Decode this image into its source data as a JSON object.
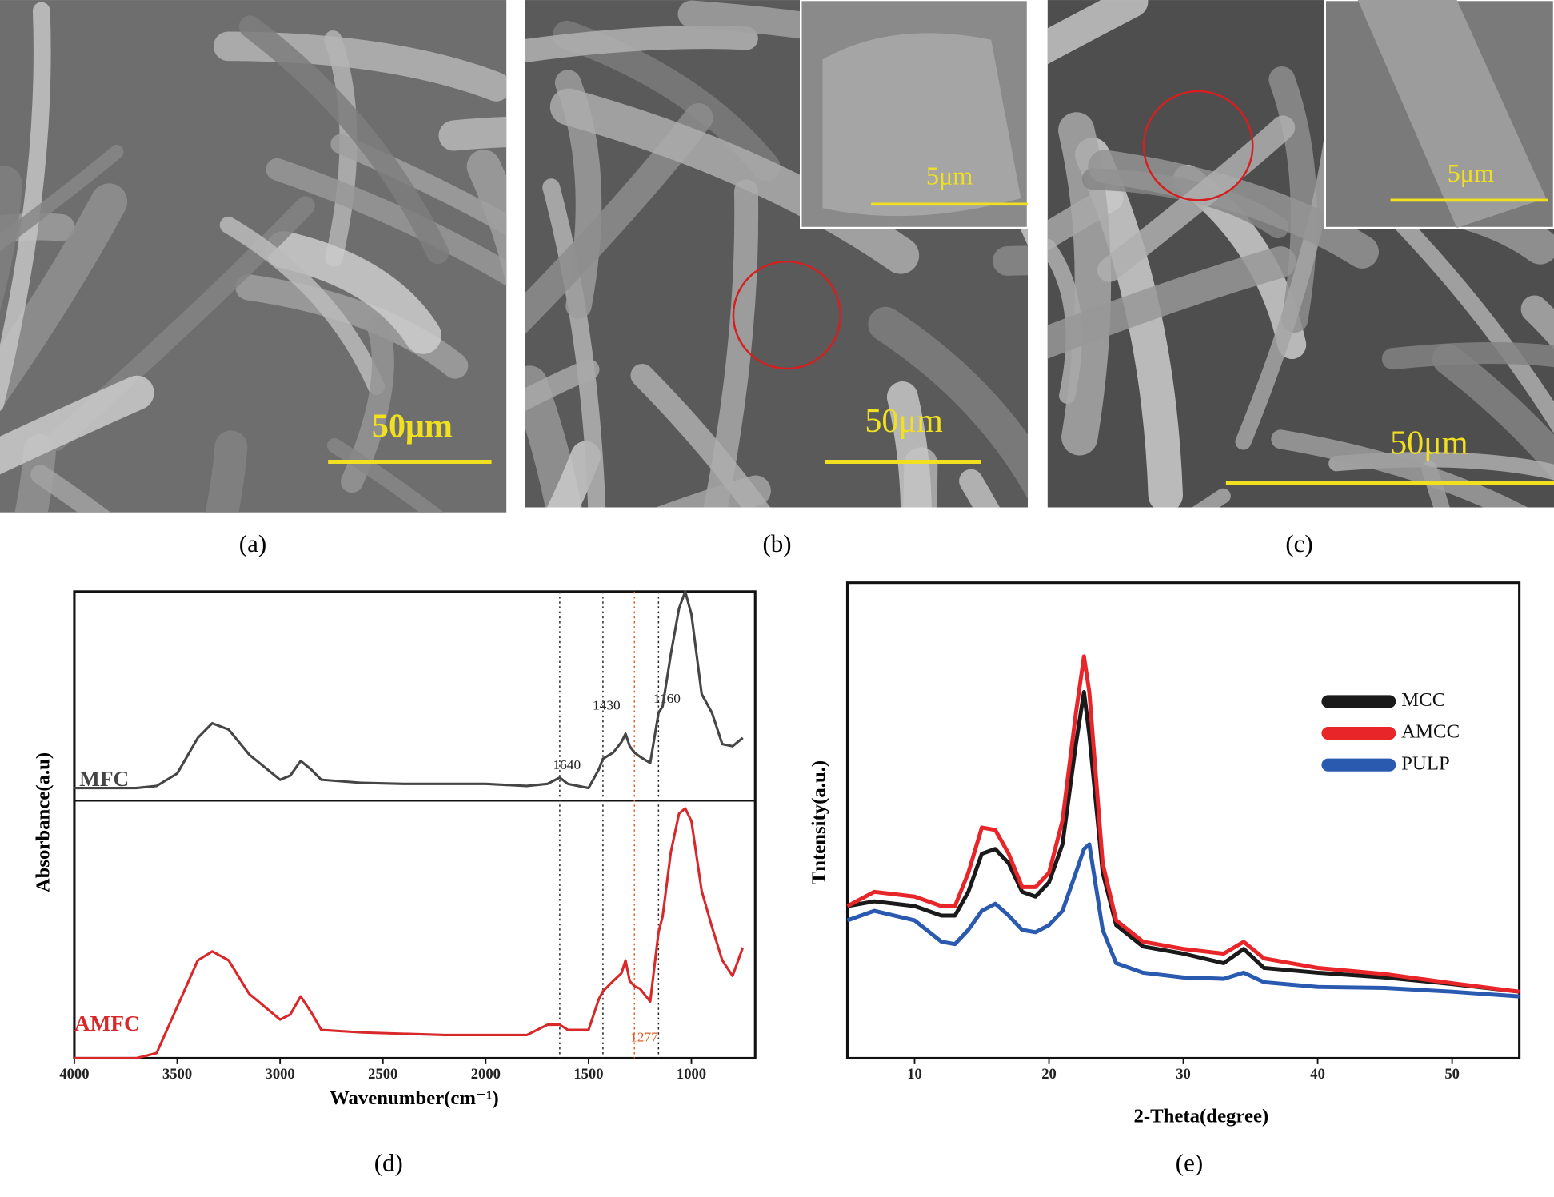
{
  "panels": [
    {
      "label": "(a)",
      "scale_bar": "50μm"
    },
    {
      "label": "(b)",
      "scale_bar": "50μm",
      "inset_scale_bar": "5μm"
    },
    {
      "label": "(c)",
      "scale_bar": "50μm",
      "inset_scale_bar": "5μm"
    }
  ],
  "chart_data": [
    {
      "type": "line",
      "label": "(d)",
      "x_label": "Wavenumber(cm⁻¹)",
      "y_label": "Absorbance(a.u)",
      "xlim": [
        4000,
        690
      ],
      "xticks": [
        4000,
        3500,
        3000,
        2500,
        2000,
        1500,
        1000
      ],
      "ylim": [
        0,
        1
      ],
      "legend": false,
      "vlines": [
        1640,
        1430,
        1277,
        1160
      ],
      "vline_colors": [
        "#222222",
        "#222222",
        "#e0602a",
        "#222222"
      ],
      "x": [
        4000,
        3800,
        3700,
        3600,
        3500,
        3400,
        3330,
        3250,
        3150,
        3000,
        2950,
        2900,
        2850,
        2800,
        2600,
        2400,
        2200,
        2000,
        1800,
        1700,
        1640,
        1600,
        1500,
        1450,
        1430,
        1380,
        1340,
        1320,
        1300,
        1277,
        1250,
        1200,
        1160,
        1140,
        1100,
        1060,
        1030,
        1000,
        950,
        900,
        850,
        800,
        750
      ],
      "series": [
        {
          "name": "MFC",
          "color": "#454545",
          "panel": 0,
          "values": [
            0.06,
            0.06,
            0.06,
            0.07,
            0.13,
            0.3,
            0.37,
            0.34,
            0.22,
            0.1,
            0.12,
            0.19,
            0.15,
            0.1,
            0.085,
            0.08,
            0.08,
            0.08,
            0.07,
            0.08,
            0.11,
            0.08,
            0.06,
            0.15,
            0.2,
            0.23,
            0.28,
            0.32,
            0.26,
            0.23,
            0.21,
            0.18,
            0.42,
            0.45,
            0.7,
            0.92,
            1.0,
            0.89,
            0.51,
            0.42,
            0.27,
            0.26,
            0.3
          ]
        },
        {
          "name": "AMFC",
          "color": "#d8282a",
          "panel": 1,
          "values": [
            0,
            0,
            0,
            0.02,
            0.2,
            0.38,
            0.415,
            0.38,
            0.25,
            0.15,
            0.17,
            0.24,
            0.18,
            0.11,
            0.1,
            0.095,
            0.09,
            0.09,
            0.09,
            0.13,
            0.13,
            0.11,
            0.11,
            0.23,
            0.26,
            0.3,
            0.33,
            0.38,
            0.3,
            0.28,
            0.27,
            0.22,
            0.49,
            0.55,
            0.8,
            0.95,
            0.97,
            0.92,
            0.65,
            0.51,
            0.38,
            0.32,
            0.43
          ]
        }
      ]
    },
    {
      "type": "line",
      "label": "(e)",
      "x_label": "2-Theta(degree)",
      "y_label": "Tntensity(a.u.)",
      "xlim": [
        5,
        55
      ],
      "xticks": [
        10,
        20,
        30,
        40,
        50
      ],
      "ylim": [
        0,
        1
      ],
      "legend": "upper right",
      "x": [
        5,
        7,
        10,
        12,
        13,
        14,
        15,
        16,
        17,
        18,
        19,
        20,
        21,
        22,
        22.6,
        23,
        24,
        25,
        27,
        30,
        33,
        34.5,
        36,
        40,
        45,
        50,
        55
      ],
      "series": [
        {
          "name": "MCC",
          "color": "#1a1a1a",
          "values": [
            0.32,
            0.33,
            0.32,
            0.3,
            0.3,
            0.35,
            0.43,
            0.44,
            0.41,
            0.35,
            0.34,
            0.37,
            0.45,
            0.66,
            0.77,
            0.68,
            0.39,
            0.28,
            0.235,
            0.22,
            0.2,
            0.23,
            0.19,
            0.18,
            0.17,
            0.156,
            0.14
          ]
        },
        {
          "name": "AMCC",
          "color": "#e8262a",
          "values": [
            0.32,
            0.35,
            0.34,
            0.32,
            0.32,
            0.39,
            0.485,
            0.48,
            0.43,
            0.36,
            0.36,
            0.39,
            0.5,
            0.725,
            0.845,
            0.77,
            0.41,
            0.29,
            0.245,
            0.23,
            0.22,
            0.245,
            0.21,
            0.19,
            0.177,
            0.158,
            0.14
          ]
        },
        {
          "name": "PULP",
          "color": "#2a5ab0",
          "values": [
            0.29,
            0.31,
            0.29,
            0.245,
            0.24,
            0.27,
            0.31,
            0.325,
            0.3,
            0.27,
            0.265,
            0.28,
            0.31,
            0.39,
            0.44,
            0.45,
            0.27,
            0.2,
            0.18,
            0.17,
            0.167,
            0.18,
            0.16,
            0.15,
            0.148,
            0.14,
            0.13
          ]
        }
      ]
    }
  ]
}
